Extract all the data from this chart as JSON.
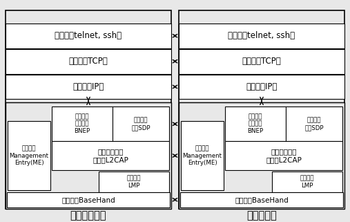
{
  "bg_color": "#e8e8e8",
  "box_fc": "#ffffff",
  "box_ec": "#000000",
  "title_left": "柱上工业设备",
  "title_right": "移动笔记本",
  "app_layer": "应用层（telnet, ssh）",
  "transport_layer": "传输层（TCP）",
  "network_layer": "网络层（IP）",
  "bnep_label": "蓝牙网络\n封装协议\nBNEP",
  "sdp_label": "服务发现\n协议SDP",
  "l2cap_label": "逻辑链路和适\n配协议L2CAP",
  "lmp_label": "链路管理\nLMP",
  "baseband_label": "硬件基带BaseHand",
  "me_label": "管理实体\nManagement\nEntry(ME)",
  "fs_large": 8.5,
  "fs_med": 7.5,
  "fs_small": 6.2,
  "fs_title": 10.5
}
